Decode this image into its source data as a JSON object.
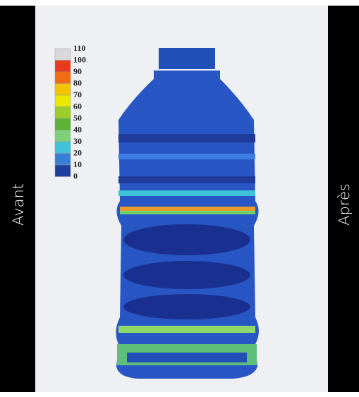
{
  "left_label": "Avant",
  "right_label": "Après",
  "legend": {
    "labels": [
      110,
      100,
      90,
      80,
      70,
      60,
      50,
      40,
      30,
      20,
      10,
      0
    ],
    "colors": [
      "#d9d9d9",
      "#e83a1f",
      "#f26a12",
      "#f5c400",
      "#e8e800",
      "#9acd2a",
      "#5cb335",
      "#7fd07a",
      "#3fc2d8",
      "#3a7fd6",
      "#1f3f9e"
    ]
  }
}
